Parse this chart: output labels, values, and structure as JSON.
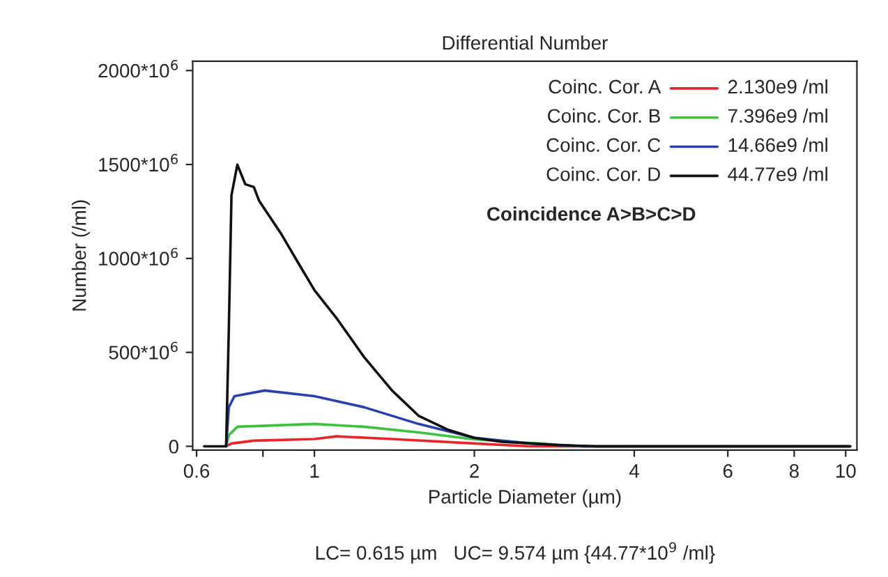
{
  "chart_data": {
    "type": "line",
    "title": "Differential Number",
    "xlabel": "Particle Diameter (µm)",
    "ylabel": "Number (/ml)",
    "log": "x",
    "xlim": [
      0.59,
      10.5
    ],
    "ylim": [
      -20000000,
      2050000000
    ],
    "xticks": [
      0.6,
      {
        "value": 0.8,
        "label": null
      },
      1,
      2,
      4,
      6,
      8,
      10
    ],
    "yticks": [
      0,
      {
        "value": 500000000,
        "label": "500*10$^{6}$"
      },
      {
        "value": 1000000000,
        "label": "1000*10$^{6}$"
      },
      {
        "value": 1500000000,
        "label": "1500*10$^{6}$"
      },
      {
        "value": 2000000000,
        "label": "2000*10$^{6}$"
      }
    ],
    "grid": false,
    "legend": "top right",
    "marker": "none",
    "line_style": "solid",
    "annotations": [
      "Coincidence A>B>C>D",
      "LC= 0.615 µm   UC= 9.574 µm {44.77*10$^{9}$ /ml}",
      "2.130e9 /ml",
      "7.396e9 /ml",
      "14.66e9 /ml",
      "44.77e9 /ml"
    ],
    "series": [
      {
        "name": "Coinc. Cor. A",
        "color": "#e8262a",
        "x": [
          0.682,
          0.698,
          0.769,
          1.0,
          1.1,
          1.4,
          2.0,
          2.54,
          10.2
        ],
        "values": [
          0,
          15000000,
          30000000,
          39000000,
          53000000,
          39000000,
          15000000,
          0,
          0
        ]
      },
      {
        "name": "Coinc. Cor. B",
        "color": "#3cc23c",
        "x": [
          0.682,
          0.69,
          0.716,
          1.0,
          1.24,
          1.57,
          2.0,
          2.86,
          3.2,
          10.2
        ],
        "values": [
          0,
          59000000,
          104000000,
          119000000,
          104000000,
          74000000,
          37000000,
          9000000,
          0,
          0
        ]
      },
      {
        "name": "Coinc. Cor. C",
        "color": "#2a3fb0",
        "x": [
          0.682,
          0.69,
          0.707,
          0.806,
          1.0,
          1.24,
          1.57,
          2.0,
          2.54,
          3.2,
          10.2
        ],
        "values": [
          0,
          208000000,
          267000000,
          297000000,
          267000000,
          208000000,
          119000000,
          45000000,
          15000000,
          0,
          0
        ]
      },
      {
        "name": "Coinc. Cor. D",
        "color": "#111111",
        "x": [
          0.62,
          0.682,
          0.69,
          0.698,
          0.716,
          0.741,
          0.769,
          0.787,
          0.867,
          0.931,
          1.0,
          1.1,
          1.24,
          1.4,
          1.57,
          1.78,
          2.0,
          2.25,
          2.86,
          3.4,
          10.2
        ],
        "values": [
          0,
          0,
          623000000,
          1336000000,
          1499000000,
          1395000000,
          1380000000,
          1306000000,
          1128000000,
          979000000,
          831000000,
          683000000,
          475000000,
          297000000,
          163000000,
          89000000,
          45000000,
          24000000,
          7000000,
          0,
          0
        ]
      }
    ]
  }
}
